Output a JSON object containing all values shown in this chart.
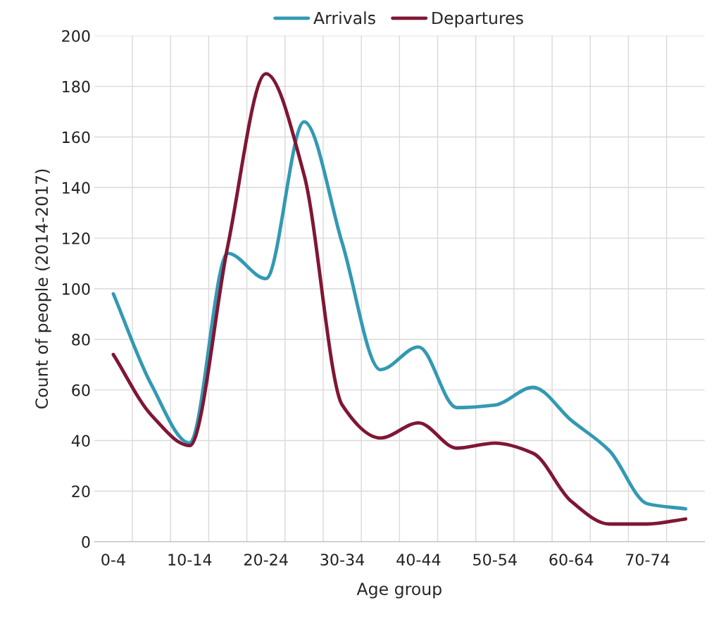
{
  "chart_data": {
    "type": "line",
    "xlabel": "Age group",
    "ylabel": "Count of people (2014-2017)",
    "categories": [
      "0-4",
      null,
      "10-14",
      null,
      "20-24",
      null,
      "30-34",
      null,
      "40-44",
      null,
      "50-54",
      null,
      "60-64",
      null,
      "70-74",
      null
    ],
    "series": [
      {
        "name": "Arrivals",
        "color": "#3399b3",
        "values": [
          98,
          62,
          39,
          114,
          104,
          166,
          118,
          68,
          77,
          53,
          54,
          61,
          48,
          36,
          15,
          13
        ]
      },
      {
        "name": "Departures",
        "color": "#7f1734",
        "values": [
          74,
          50,
          38,
          117,
          185,
          145,
          54,
          41,
          47,
          37,
          39,
          35,
          16,
          7,
          7,
          9
        ]
      }
    ],
    "ylim": [
      0,
      200
    ],
    "yticks": [
      0,
      20,
      40,
      60,
      80,
      100,
      120,
      140,
      160,
      180,
      200
    ],
    "grid": true,
    "legend": "top",
    "marker": "none",
    "line_style": "solid"
  }
}
